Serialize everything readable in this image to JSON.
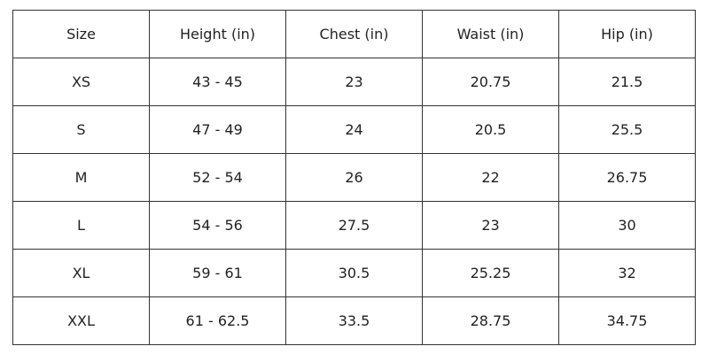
{
  "table": {
    "headers": [
      "Size",
      "Height (in)",
      "Chest (in)",
      "Waist (in)",
      "Hip (in)"
    ],
    "rows": [
      [
        "XS",
        "43 - 45",
        "23",
        "20.75",
        "21.5"
      ],
      [
        "S",
        "47 - 49",
        "24",
        "20.5",
        "25.5"
      ],
      [
        "M",
        "52 - 54",
        "26",
        "22",
        "26.75"
      ],
      [
        "L",
        "54 - 56",
        "27.5",
        "23",
        "30"
      ],
      [
        "XL",
        "59 - 61",
        "30.5",
        "25.25",
        "32"
      ],
      [
        "XXL",
        "61 - 62.5",
        "33.5",
        "28.75",
        "34.75"
      ]
    ]
  }
}
